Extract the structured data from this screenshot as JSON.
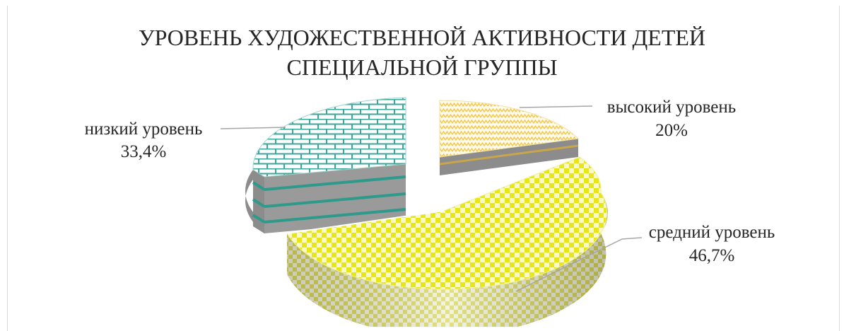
{
  "chart_data": {
    "type": "pie",
    "title": [
      "УРОВЕНЬ ХУДОЖЕСТВЕННОЙ АКТИВНОСТИ ДЕТЕЙ",
      "СПЕЦИАЛЬНОЙ ГРУППЫ"
    ],
    "slices": [
      {
        "label": "высокий уровень",
        "value": 20,
        "value_label": "20%",
        "color": "#f5c342"
      },
      {
        "label": "средний уровень",
        "value": 46.7,
        "value_label": "46,7%",
        "color": "#e6e619"
      },
      {
        "label": "низкий уровень",
        "value": 33.4,
        "value_label": "33,4%",
        "color": "#3aa89a"
      }
    ],
    "style": "3d-exploded-pie-with-patterns"
  }
}
